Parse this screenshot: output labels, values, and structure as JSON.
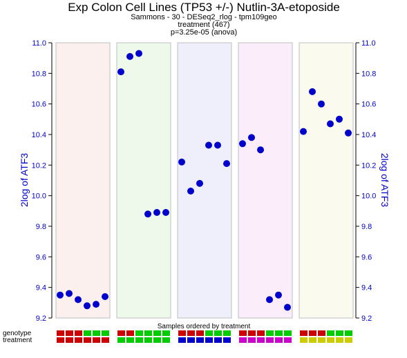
{
  "chart_data": {
    "type": "scatter",
    "title": "Exp Colon Cell Lines (TP53 +/-) Nutlin-3A-etoposide",
    "subtitle_lines": [
      "Sammons - 30 - DESeq2_rlog - tpm109geo",
      "treatment (467)",
      "p=3.25e-05 (anova)"
    ],
    "ylabel": "2log of ATF3",
    "xlabel": "Samples ordered by treatment",
    "ylim": [
      9.2,
      11.0
    ],
    "yticks": [
      "9.2",
      "9.4",
      "9.6",
      "9.8",
      "10.0",
      "10.2",
      "10.4",
      "10.6",
      "10.8",
      "11.0"
    ],
    "point_color": "#0000cc",
    "groups": [
      {
        "bg": "#fbf0ee",
        "values": [
          9.35,
          9.36,
          9.32,
          9.28,
          9.29,
          9.34
        ]
      },
      {
        "bg": "#eef9ec",
        "values": [
          10.81,
          10.91,
          10.93,
          9.88,
          9.89,
          9.89
        ]
      },
      {
        "bg": "#eeeffb",
        "values": [
          10.22,
          10.03,
          10.08,
          10.33,
          10.33,
          10.21
        ]
      },
      {
        "bg": "#fbeefa",
        "values": [
          10.34,
          10.38,
          10.3,
          9.32,
          9.35,
          9.27
        ]
      },
      {
        "bg": "#fafaee",
        "values": [
          10.42,
          10.68,
          10.6,
          10.47,
          10.5,
          10.41
        ]
      }
    ],
    "tracks": {
      "labels": [
        "genotype",
        "treatment"
      ],
      "genotype": [
        [
          "#cc0000",
          "#cc0000",
          "#cc0000",
          "#00cc00",
          "#00cc00",
          "#00cc00"
        ],
        [
          "#cc0000",
          "#cc0000",
          "#00cc00",
          "#00cc00",
          "#00cc00",
          "#00cc00"
        ],
        [
          "#cc0000",
          "#cc0000",
          "#cc0000",
          "#00cc00",
          "#00cc00",
          "#00cc00"
        ],
        [
          "#cc0000",
          "#cc0000",
          "#cc0000",
          "#00cc00",
          "#00cc00",
          "#00cc00"
        ],
        [
          "#cc0000",
          "#cc0000",
          "#cc0000",
          "#00cc00",
          "#00cc00",
          "#00cc00"
        ]
      ],
      "treatment": [
        [
          "#cc0000",
          "#cc0000",
          "#cc0000",
          "#cc0000",
          "#cc0000",
          "#cc0000"
        ],
        [
          "#00cc00",
          "#00cc00",
          "#00cc00",
          "#00cc00",
          "#00cc00",
          "#00cc00"
        ],
        [
          "#0000cc",
          "#0000cc",
          "#0000cc",
          "#0000cc",
          "#0000cc",
          "#0000cc"
        ],
        [
          "#cc00cc",
          "#cc00cc",
          "#cc00cc",
          "#cc00cc",
          "#cc00cc",
          "#cc00cc"
        ],
        [
          "#cccc00",
          "#cccc00",
          "#cccc00",
          "#cccc00",
          "#cccc00",
          "#cccc00"
        ]
      ]
    }
  }
}
